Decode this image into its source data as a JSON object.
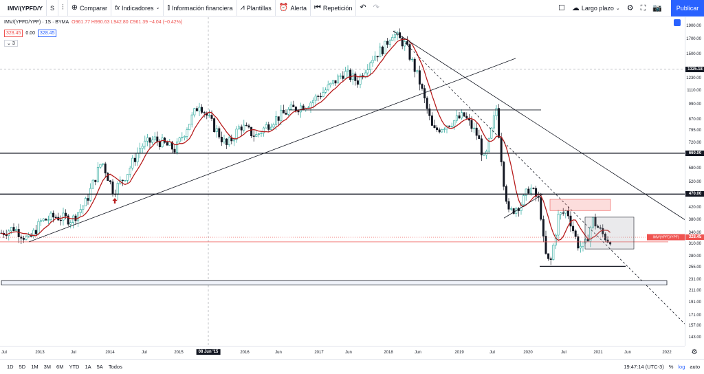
{
  "toolbar": {
    "symbol": "IMV/(YPFD/Y",
    "interval": "S",
    "compare": "Comparar",
    "indicators": "Indicadores",
    "financial": "Información financiera",
    "templates": "Plantillas",
    "alert": "Alerta",
    "replay": "Repetición",
    "layout": "Largo plazo",
    "publish": "Publicar"
  },
  "legend": {
    "title": "IMV/(YPFD/YPF) · 1S · BYMA",
    "ohlc": "O961.77 H990.63 L942.80 C961.39 −4.04 (−0.42%)",
    "bid": "328.45",
    "spread": "0.00",
    "ask": "328.45",
    "indicator_count": "3"
  },
  "chart_data": {
    "type": "candlestick",
    "y_scale": "log",
    "yticks": [
      "1900.00",
      "1700.00",
      "1500.00",
      "1325.18",
      "1230.00",
      "1110.00",
      "990.00",
      "870.00",
      "795.00",
      "720.00",
      "660.00",
      "580.00",
      "520.00",
      "470.00",
      "420.00",
      "380.00",
      "340.00",
      "310.00",
      "280.00",
      "255.00",
      "231.00",
      "211.00",
      "191.00",
      "171.00",
      "157.00",
      "143.00"
    ],
    "price_labels": {
      "hline1": "1325.18",
      "hline2": "660.00",
      "hline3": "470.00",
      "current": "328.45",
      "current_name": "IMV/(YPFD/YPF)"
    },
    "xticks": [
      "Jul",
      "2013",
      "Jul",
      "2014",
      "Jul",
      "2015",
      "2016",
      "Jun",
      "2017",
      "Jun",
      "2018",
      "Jun",
      "2019",
      "Jul",
      "2020",
      "Jul",
      "2021",
      "Jun",
      "2022"
    ],
    "crosshair_date": "08 Jun '15"
  },
  "bottom": {
    "ranges": [
      "1D",
      "5D",
      "1M",
      "3M",
      "6M",
      "YTD",
      "1A",
      "5A",
      "Todos"
    ],
    "time": "19:47:14 (UTC-3)",
    "percent": "%",
    "log": "log",
    "auto": "auto"
  }
}
